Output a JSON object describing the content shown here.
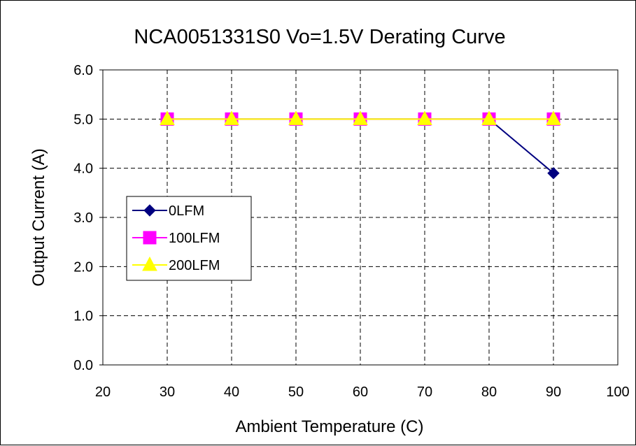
{
  "chart_data": {
    "type": "line",
    "title": "NCA0051331S0 Vo=1.5V Derating Curve",
    "xlabel": "Ambient Temperature (C)",
    "ylabel": "Output Current (A)",
    "xlim": [
      20,
      100
    ],
    "ylim": [
      0,
      6
    ],
    "x_ticks": [
      "20",
      "30",
      "40",
      "50",
      "60",
      "70",
      "80",
      "90",
      "100"
    ],
    "y_ticks": [
      "0.0",
      "1.0",
      "2.0",
      "3.0",
      "4.0",
      "5.0",
      "6.0"
    ],
    "grid": true,
    "legend_position": "left-middle",
    "x": [
      30,
      40,
      50,
      60,
      70,
      80,
      90
    ],
    "series": [
      {
        "name": "0LFM",
        "values": [
          5.0,
          5.0,
          5.0,
          5.0,
          5.0,
          5.0,
          3.9
        ],
        "color": "#000080",
        "marker": "diamond"
      },
      {
        "name": "100LFM",
        "values": [
          5.0,
          5.0,
          5.0,
          5.0,
          5.0,
          5.0,
          5.0
        ],
        "color": "#ff00ff",
        "marker": "square"
      },
      {
        "name": "200LFM",
        "values": [
          5.0,
          5.0,
          5.0,
          5.0,
          5.0,
          5.0,
          5.0
        ],
        "color": "#ffff00",
        "marker": "triangle"
      }
    ]
  }
}
